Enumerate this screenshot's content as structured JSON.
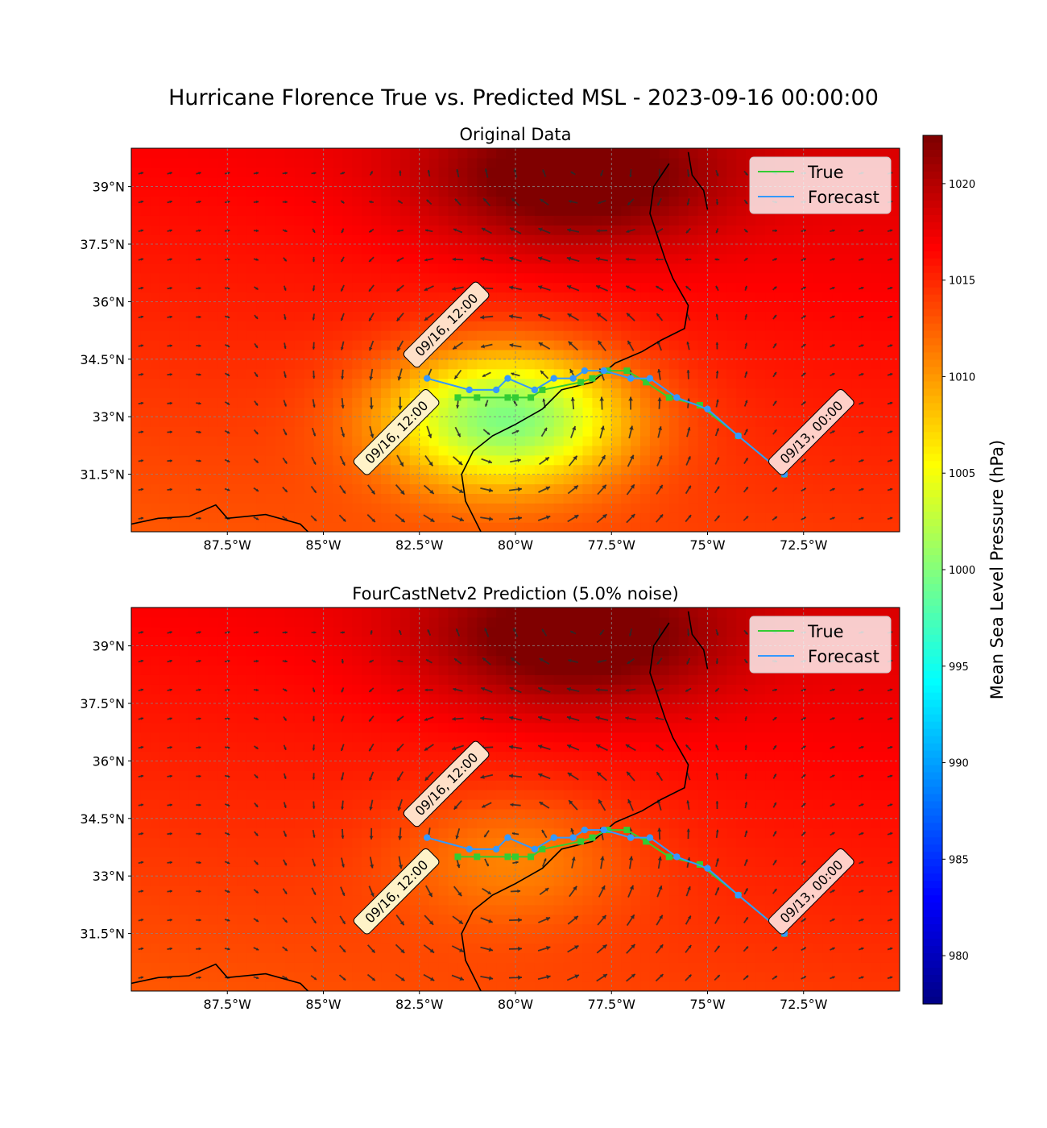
{
  "figure": {
    "title": "Hurricane Florence True vs. Predicted MSL - 2023-09-16 00:00:00",
    "colorbar_label": "Mean Sea Level Pressure (hPa)",
    "colorbar_ticks": [
      980,
      985,
      990,
      995,
      1000,
      1005,
      1010,
      1015,
      1020
    ],
    "colorbar_range": [
      977.5,
      1022.5
    ],
    "colormap": "jet"
  },
  "legend": {
    "true_label": "True",
    "forecast_label": "Forecast",
    "true_color": "#33cc33",
    "forecast_color": "#3399ff"
  },
  "annotations": {
    "start_label": "09/13, 00:00",
    "end_true_label": "09/16, 12:00",
    "end_forecast_label": "09/16, 12:00"
  },
  "chart_data": [
    {
      "type": "map",
      "title": "Original Data",
      "x_ticks": [
        "87.5°W",
        "85°W",
        "82.5°W",
        "80°W",
        "77.5°W",
        "75°W",
        "72.5°W"
      ],
      "y_ticks": [
        "31.5°N",
        "33°N",
        "34.5°N",
        "36°N",
        "37.5°N",
        "39°N"
      ],
      "lon_range": [
        -90,
        -70
      ],
      "lat_range": [
        30,
        40
      ],
      "grid": true,
      "legend_position": "top-right",
      "low_center": {
        "lon": -80.2,
        "lat": 33.0,
        "msl": 998
      },
      "true_track": {
        "lon": [
          -73,
          -74.2,
          -75.2,
          -76.0,
          -76.6,
          -77.1,
          -77.6,
          -78.0,
          -78.3,
          -79.3,
          -79.6,
          -80.0,
          -80.2,
          -81.0,
          -81.5
        ],
        "lat": [
          31.5,
          32.5,
          33.3,
          33.5,
          33.9,
          34.2,
          34.2,
          34.0,
          33.9,
          33.7,
          33.5,
          33.5,
          33.5,
          33.5,
          33.5
        ]
      },
      "forecast_track": {
        "lon": [
          -73,
          -74.2,
          -75.0,
          -75.8,
          -76.5,
          -77.0,
          -77.7,
          -78.2,
          -78.5,
          -79.0,
          -79.5,
          -80.2,
          -80.5,
          -81.2,
          -82.3
        ],
        "lat": [
          31.5,
          32.5,
          33.2,
          33.5,
          34.0,
          34.0,
          34.2,
          34.2,
          34.0,
          34.0,
          33.7,
          34.0,
          33.7,
          33.7,
          34.0
        ]
      }
    },
    {
      "type": "map",
      "title": "FourCastNetv2 Prediction (5.0% noise)",
      "x_ticks": [
        "87.5°W",
        "85°W",
        "82.5°W",
        "80°W",
        "77.5°W",
        "75°W",
        "72.5°W"
      ],
      "y_ticks": [
        "31.5°N",
        "33°N",
        "34.5°N",
        "36°N",
        "37.5°N",
        "39°N"
      ],
      "lon_range": [
        -90,
        -70
      ],
      "lat_range": [
        30,
        40
      ],
      "grid": true,
      "legend_position": "top-right",
      "low_center": {
        "lon": -80.0,
        "lat": 33.5,
        "msl": 1009
      },
      "true_track": {
        "lon": [
          -73,
          -74.2,
          -75.2,
          -76.0,
          -76.6,
          -77.1,
          -77.6,
          -78.0,
          -78.3,
          -79.3,
          -79.6,
          -80.0,
          -80.2,
          -81.0,
          -81.5
        ],
        "lat": [
          31.5,
          32.5,
          33.3,
          33.5,
          33.9,
          34.2,
          34.2,
          34.0,
          33.9,
          33.7,
          33.5,
          33.5,
          33.5,
          33.5,
          33.5
        ]
      },
      "forecast_track": {
        "lon": [
          -73,
          -74.2,
          -75.0,
          -75.8,
          -76.5,
          -77.0,
          -77.7,
          -78.2,
          -78.5,
          -79.0,
          -79.5,
          -80.2,
          -80.5,
          -81.2,
          -82.3
        ],
        "lat": [
          31.5,
          32.5,
          33.2,
          33.5,
          34.0,
          34.0,
          34.2,
          34.2,
          34.0,
          34.0,
          33.7,
          34.0,
          33.7,
          33.7,
          34.0
        ]
      }
    }
  ]
}
